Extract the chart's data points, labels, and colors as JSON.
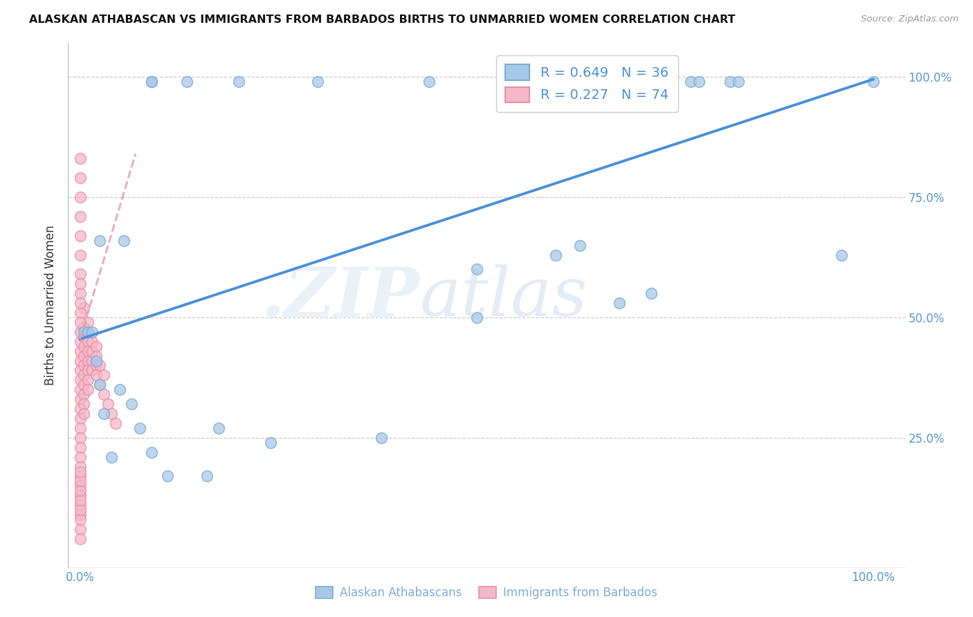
{
  "title": "ALASKAN ATHABASCAN VS IMMIGRANTS FROM BARBADOS BIRTHS TO UNMARRIED WOMEN CORRELATION CHART",
  "source": "Source: ZipAtlas.com",
  "ylabel": "Births to Unmarried Women",
  "legend_blue_r": "R = 0.649",
  "legend_blue_n": "N = 36",
  "legend_pink_r": "R = 0.227",
  "legend_pink_n": "N = 74",
  "watermark_zip": ".ZIP",
  "watermark_atlas": "atlas",
  "blue_color": "#a8c8e8",
  "blue_edge_color": "#7aafd4",
  "pink_color": "#f4b8c8",
  "pink_edge_color": "#e890aa",
  "blue_line_color": "#4a90d9",
  "pink_line_color": "#e8a0b0",
  "blue_scatter_x": [
    0.005,
    0.025,
    0.055,
    0.09,
    0.135,
    0.09,
    0.2,
    0.3,
    0.44,
    0.5,
    0.6,
    0.63,
    0.68,
    0.72,
    0.77,
    0.78,
    0.82,
    0.83,
    0.96,
    1.0,
    0.01,
    0.015,
    0.02,
    0.025,
    0.03,
    0.04,
    0.05,
    0.065,
    0.075,
    0.09,
    0.11,
    0.16,
    0.175,
    0.24,
    0.38,
    0.5
  ],
  "blue_scatter_y": [
    0.47,
    0.66,
    0.66,
    0.99,
    0.99,
    0.99,
    0.99,
    0.99,
    0.99,
    0.6,
    0.63,
    0.65,
    0.53,
    0.55,
    0.99,
    0.99,
    0.99,
    0.99,
    0.63,
    0.99,
    0.47,
    0.47,
    0.41,
    0.36,
    0.3,
    0.21,
    0.35,
    0.32,
    0.27,
    0.22,
    0.17,
    0.17,
    0.27,
    0.24,
    0.25,
    0.5
  ],
  "pink_scatter_x": [
    0.0,
    0.0,
    0.0,
    0.0,
    0.0,
    0.0,
    0.0,
    0.0,
    0.0,
    0.0,
    0.0,
    0.0,
    0.0,
    0.0,
    0.0,
    0.0,
    0.0,
    0.0,
    0.0,
    0.0,
    0.005,
    0.005,
    0.005,
    0.005,
    0.005,
    0.005,
    0.005,
    0.005,
    0.005,
    0.005,
    0.01,
    0.01,
    0.01,
    0.01,
    0.01,
    0.01,
    0.01,
    0.01,
    0.015,
    0.015,
    0.015,
    0.015,
    0.02,
    0.02,
    0.02,
    0.02,
    0.025,
    0.025,
    0.03,
    0.03,
    0.035,
    0.04,
    0.045,
    0.005,
    0.0,
    0.0,
    0.0,
    0.0,
    0.0,
    0.0,
    0.0,
    0.0,
    0.0,
    0.0,
    0.0,
    0.0,
    0.0,
    0.0,
    0.0,
    0.0,
    0.0,
    0.0,
    0.0,
    0.0
  ],
  "pink_scatter_y": [
    0.47,
    0.45,
    0.43,
    0.41,
    0.39,
    0.37,
    0.35,
    0.33,
    0.31,
    0.29,
    0.27,
    0.25,
    0.23,
    0.21,
    0.19,
    0.17,
    0.15,
    0.13,
    0.11,
    0.09,
    0.48,
    0.46,
    0.44,
    0.42,
    0.4,
    0.38,
    0.36,
    0.34,
    0.32,
    0.3,
    0.49,
    0.47,
    0.45,
    0.43,
    0.41,
    0.39,
    0.37,
    0.35,
    0.45,
    0.43,
    0.41,
    0.39,
    0.44,
    0.42,
    0.4,
    0.38,
    0.4,
    0.36,
    0.38,
    0.34,
    0.32,
    0.3,
    0.28,
    0.52,
    0.83,
    0.79,
    0.75,
    0.71,
    0.67,
    0.63,
    0.59,
    0.55,
    0.51,
    0.57,
    0.53,
    0.49,
    0.06,
    0.04,
    0.08,
    0.1,
    0.12,
    0.14,
    0.16,
    0.18
  ],
  "blue_trend_x": [
    0.0,
    1.0
  ],
  "blue_trend_y": [
    0.455,
    0.995
  ],
  "pink_trend_x": [
    0.0,
    0.07
  ],
  "pink_trend_y": [
    0.455,
    0.84
  ],
  "figsize": [
    14.06,
    8.92
  ],
  "dpi": 100,
  "xlim": [
    -0.015,
    1.04
  ],
  "ylim": [
    -0.02,
    1.07
  ]
}
